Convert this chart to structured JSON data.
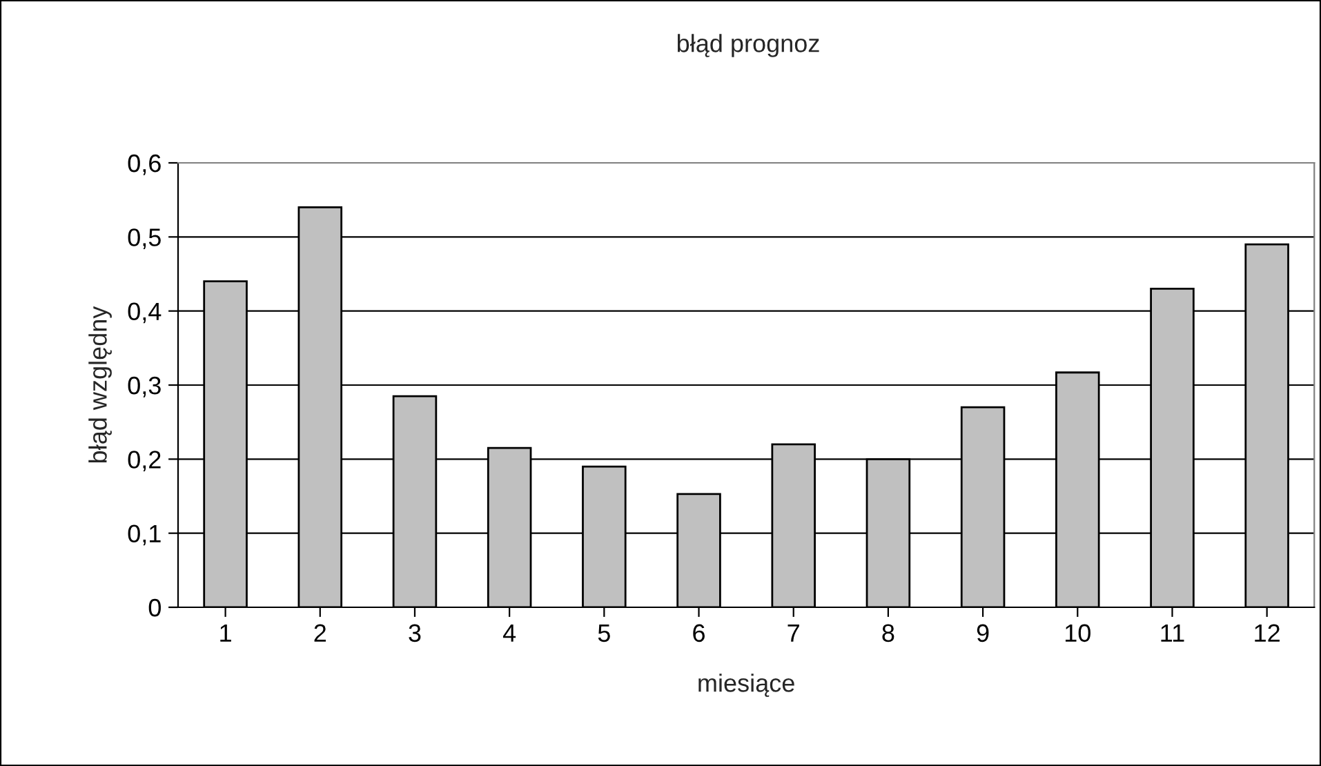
{
  "chart_data": {
    "type": "bar",
    "title": "błąd prognoz",
    "xlabel": "miesiące",
    "ylabel": "błąd względny",
    "categories": [
      "1",
      "2",
      "3",
      "4",
      "5",
      "6",
      "7",
      "8",
      "9",
      "10",
      "11",
      "12"
    ],
    "values": [
      0.44,
      0.54,
      0.285,
      0.215,
      0.19,
      0.153,
      0.22,
      0.2,
      0.27,
      0.317,
      0.43,
      0.49
    ],
    "color": "#c0c0c0",
    "ylim": [
      0,
      0.6
    ],
    "yticks": [
      0,
      {
        "value": 0.1,
        "label": "0,1"
      },
      {
        "value": 0.2,
        "label": "0,2"
      },
      {
        "value": 0.3,
        "label": "0,3"
      },
      {
        "value": 0.4,
        "label": "0,4"
      },
      {
        "value": 0.5,
        "label": "0,5"
      },
      {
        "value": 0.6,
        "label": "0,6"
      }
    ],
    "grid": "y",
    "legend": false
  }
}
